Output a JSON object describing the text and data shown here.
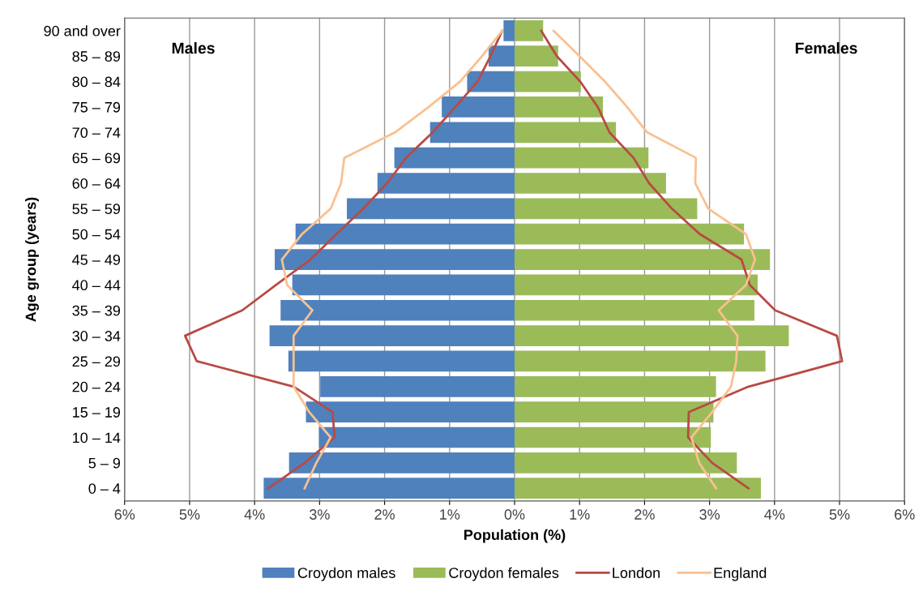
{
  "chart_data": {
    "type": "bar",
    "orientation": "horizontal",
    "xlabel": "Population (%)",
    "ylabel": "Age group (years)",
    "categories": [
      "90 and over",
      "85 – 89",
      "80 – 84",
      "75 – 79",
      "70 – 74",
      "65 – 69",
      "60 – 64",
      "55 – 59",
      "50 – 54",
      "45 – 49",
      "40 – 44",
      "35 – 39",
      "30 – 34",
      "25 – 29",
      "20 – 24",
      "15 – 19",
      "10 – 14",
      "5 – 9",
      "0 – 4"
    ],
    "series": [
      {
        "name": "Croydon males",
        "color": "#4f81bd",
        "values": [
          -0.17,
          -0.4,
          -0.73,
          -1.12,
          -1.3,
          -1.85,
          -2.11,
          -2.58,
          -3.37,
          -3.69,
          -3.42,
          -3.6,
          -3.77,
          -3.48,
          -2.99,
          -3.21,
          -3.01,
          -3.47,
          -3.86
        ]
      },
      {
        "name": "Croydon females",
        "color": "#9bbb59",
        "values": [
          0.44,
          0.67,
          1.02,
          1.36,
          1.56,
          2.06,
          2.33,
          2.81,
          3.53,
          3.93,
          3.74,
          3.69,
          4.22,
          3.86,
          3.1,
          3.06,
          3.02,
          3.42,
          3.79
        ]
      },
      {
        "name": "London",
        "type": "line",
        "color": "#b84a44",
        "values": [
          -0.19,
          -0.37,
          -0.57,
          -0.91,
          -1.26,
          -1.67,
          -1.96,
          -2.33,
          -2.74,
          -3.14,
          -3.67,
          -4.19,
          -5.07,
          -4.89,
          -3.4,
          -2.8,
          -2.77,
          -3.23,
          -3.79
        ]
      },
      {
        "type": "line",
        "color": "#b84a44",
        "values": [
          0.41,
          0.65,
          1.01,
          1.28,
          1.46,
          1.83,
          2.07,
          2.42,
          2.85,
          3.49,
          3.62,
          4.01,
          4.96,
          5.04,
          3.6,
          2.68,
          2.67,
          3.04,
          3.6
        ]
      },
      {
        "name": "England",
        "type": "line",
        "color": "#fac090",
        "values": [
          -0.19,
          -0.5,
          -0.84,
          -1.32,
          -1.84,
          -2.62,
          -2.67,
          -2.83,
          -3.27,
          -3.58,
          -3.5,
          -3.11,
          -3.4,
          -3.4,
          -3.4,
          -3.16,
          -2.83,
          -3.05,
          -3.23
        ]
      },
      {
        "type": "line",
        "color": "#fac090",
        "values": [
          0.6,
          1.0,
          1.39,
          1.73,
          2.04,
          2.79,
          2.78,
          2.98,
          3.56,
          3.7,
          3.56,
          3.14,
          3.43,
          3.41,
          3.33,
          3.04,
          2.72,
          2.84,
          3.1
        ]
      }
    ],
    "xlim": [
      -6,
      6
    ],
    "xticks": [
      {
        "value": -6,
        "label": "6%"
      },
      {
        "value": -5,
        "label": "5%"
      },
      {
        "value": -4,
        "label": "4%"
      },
      {
        "value": -3,
        "label": "3%"
      },
      {
        "value": -2,
        "label": "2%"
      },
      {
        "value": -1,
        "label": "1%"
      },
      {
        "value": 0,
        "label": "0%"
      },
      {
        "value": 1,
        "label": "1%"
      },
      {
        "value": 2,
        "label": "2%"
      },
      {
        "value": 3,
        "label": "3%"
      },
      {
        "value": 4,
        "label": "4%"
      },
      {
        "value": 5,
        "label": "5%"
      },
      {
        "value": 6,
        "label": "6%"
      }
    ],
    "annotations": [
      "Males",
      "Females"
    ],
    "stacked": true,
    "grid": "x",
    "legend": "bottom",
    "marker": "none",
    "line_style": "solid"
  }
}
